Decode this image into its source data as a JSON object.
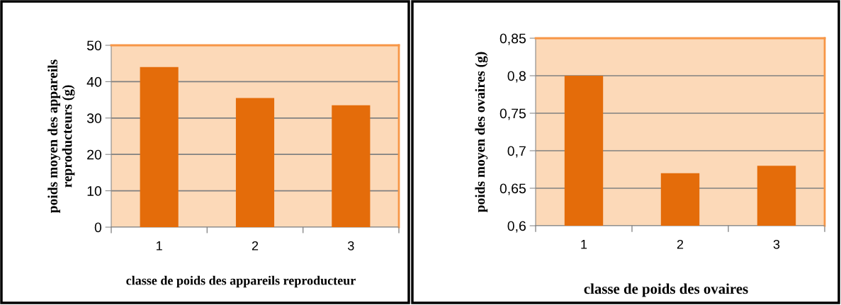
{
  "chart_data": [
    {
      "type": "bar",
      "categories": [
        "1",
        "2",
        "3"
      ],
      "values": [
        44,
        35.5,
        33.5
      ],
      "color": "#e46c0a",
      "ylim": [
        0,
        50
      ],
      "yticks": [
        0,
        10,
        20,
        30,
        40,
        50
      ],
      "grid": "y",
      "xlabel": "classe de poids des appareils reproducteur",
      "ylabel": "poids moyen des appareils\nreproducteurs (g)"
    },
    {
      "type": "bar",
      "categories": [
        "1",
        "2",
        "3"
      ],
      "values": [
        0.8,
        0.67,
        0.68
      ],
      "color": "#e46c0a",
      "ylim": [
        0.6,
        0.85
      ],
      "yticks": [
        {
          "value": 0.6,
          "label": "0,6"
        },
        {
          "value": 0.65,
          "label": "0,65"
        },
        {
          "value": 0.7,
          "label": "0,7"
        },
        {
          "value": 0.75,
          "label": "0,75"
        },
        {
          "value": 0.8,
          "label": "0,8"
        },
        {
          "value": 0.85,
          "label": "0,85"
        }
      ],
      "grid": "y",
      "xlabel": "classe de poids des ovaires",
      "ylabel": "poids moyen des ovaires (g)"
    }
  ]
}
